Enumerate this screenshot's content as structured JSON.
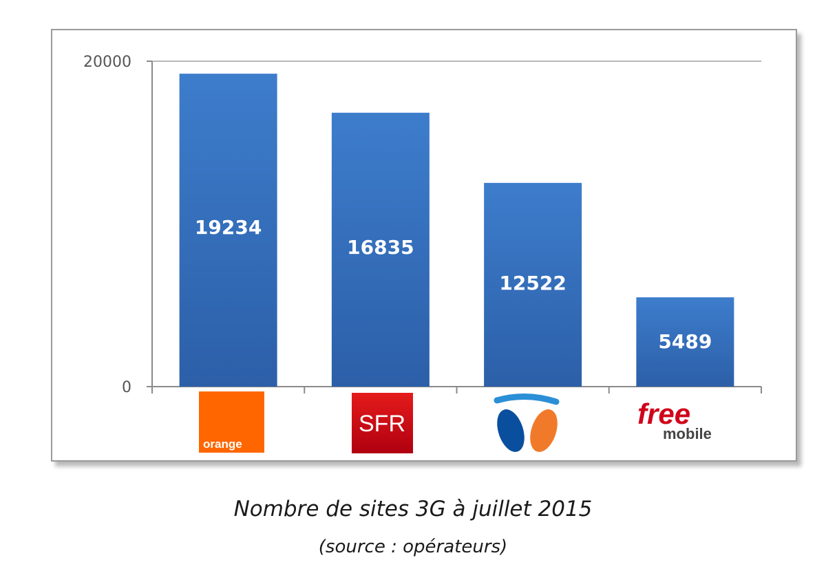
{
  "chart_data": {
    "type": "bar",
    "categories": [
      "orange",
      "SFR",
      "Bouygues Telecom",
      "free mobile"
    ],
    "values": [
      19234,
      16835,
      12522,
      5489
    ],
    "ylim": [
      0,
      20000
    ],
    "yticks": [
      "0",
      "20000"
    ],
    "data_labels": [
      "19234",
      "16835",
      "12522",
      "5489"
    ],
    "grid": false,
    "legend": "none",
    "title": "Nombre de sites 3G à juillet 2015",
    "subtitle": "(source : opérateurs)",
    "bar_color": "#3b78c6"
  },
  "logos": {
    "orange_text": "orange",
    "sfr_text": "SFR",
    "free_text": "free",
    "mobile_text": "mobile"
  },
  "colors": {
    "orange_brand": "#ff6600",
    "sfr_brand": "#d40000",
    "bouygues_blue": "#0a4f9e",
    "bouygues_orange": "#f07a2a",
    "free_red": "#d0021b"
  }
}
